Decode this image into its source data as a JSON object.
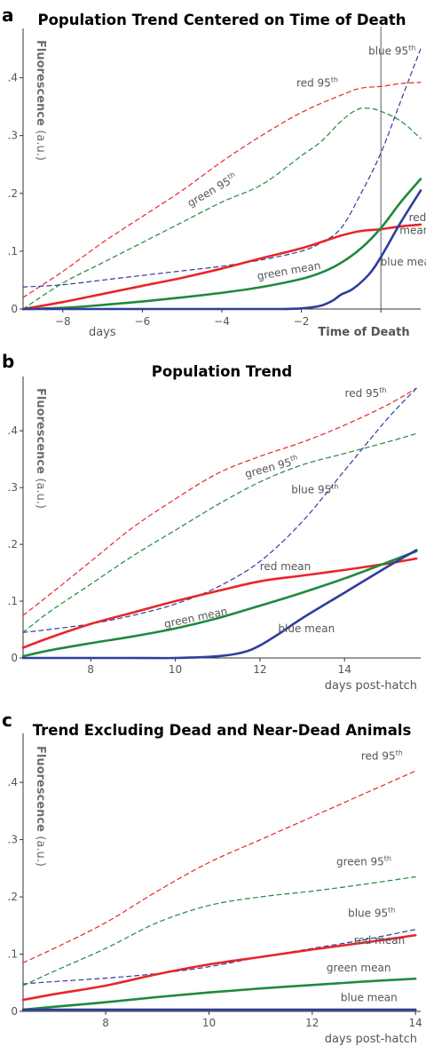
{
  "chart_data": [
    {
      "type": "line",
      "panel_letter": "a",
      "title": "Population Trend Centered on Time of Death",
      "ylabel": "Fluorescence",
      "ylabel_unit": "(a.u.)",
      "xlabel": "days",
      "xlabel_secondary": "Time of Death",
      "xlim": [
        -9,
        1
      ],
      "ylim": [
        0,
        0.47
      ],
      "xticks": [
        -8,
        -6,
        -4,
        -2,
        0
      ],
      "yticks": [
        0,
        0.1,
        0.2,
        0.3,
        0.4
      ],
      "vline_x": 0,
      "colors": {
        "red": "#e8262a",
        "green": "#1f8a3b",
        "blue": "#2e3e9c"
      },
      "series": [
        {
          "name": "red 95th",
          "color": "red",
          "style": "dashed",
          "x": [
            -9,
            -8,
            -7,
            -6,
            -5,
            -4,
            -3,
            -2,
            -1,
            -0.5,
            0,
            0.5,
            1
          ],
          "y": [
            0.02,
            0.065,
            0.115,
            0.16,
            0.205,
            0.255,
            0.3,
            0.34,
            0.37,
            0.382,
            0.385,
            0.39,
            0.392
          ]
        },
        {
          "name": "green 95th",
          "color": "green",
          "style": "dashed",
          "x": [
            -9,
            -8,
            -7,
            -6,
            -5,
            -4,
            -3,
            -2,
            -1.5,
            -1,
            -0.6,
            -0.3,
            0,
            0.5,
            1
          ],
          "y": [
            0.0,
            0.045,
            0.08,
            0.115,
            0.15,
            0.185,
            0.215,
            0.265,
            0.29,
            0.325,
            0.345,
            0.347,
            0.342,
            0.325,
            0.295
          ]
        },
        {
          "name": "blue 95th",
          "color": "blue",
          "style": "dashed",
          "x": [
            -9,
            -8,
            -7,
            -6,
            -5,
            -4,
            -3,
            -2,
            -1.5,
            -1,
            -0.5,
            0,
            0.5,
            1
          ],
          "y": [
            0.038,
            0.042,
            0.05,
            0.058,
            0.066,
            0.074,
            0.085,
            0.1,
            0.115,
            0.14,
            0.2,
            0.27,
            0.36,
            0.45
          ]
        },
        {
          "name": "red mean",
          "color": "red",
          "style": "solid",
          "x": [
            -9,
            -8,
            -7,
            -6,
            -5,
            -4,
            -3,
            -2,
            -1,
            -0.5,
            0,
            0.5,
            1
          ],
          "y": [
            0.0,
            0.012,
            0.026,
            0.04,
            0.054,
            0.07,
            0.088,
            0.105,
            0.127,
            0.135,
            0.138,
            0.143,
            0.146
          ]
        },
        {
          "name": "green mean",
          "color": "green",
          "style": "solid",
          "x": [
            -9,
            -8,
            -7,
            -6,
            -5,
            -4,
            -3,
            -2,
            -1.5,
            -1,
            -0.5,
            0,
            0.5,
            1
          ],
          "y": [
            0.0,
            0.002,
            0.007,
            0.013,
            0.02,
            0.028,
            0.038,
            0.052,
            0.063,
            0.08,
            0.105,
            0.14,
            0.185,
            0.225
          ]
        },
        {
          "name": "blue mean",
          "color": "blue",
          "style": "solid",
          "x": [
            -9,
            -8,
            -6,
            -4,
            -2.5,
            -2,
            -1.5,
            -1.2,
            -1,
            -0.7,
            -0.3,
            0,
            0.5,
            1
          ],
          "y": [
            0.0,
            0.0,
            0.0,
            0.0,
            0.0,
            0.001,
            0.006,
            0.015,
            0.025,
            0.035,
            0.06,
            0.09,
            0.15,
            0.205
          ]
        }
      ],
      "labels": [
        {
          "text": "blue 95",
          "sup": "th",
          "x": 0.28,
          "y": 0.44,
          "color": "#555"
        },
        {
          "text": "red 95",
          "sup": "th",
          "x": -1.6,
          "y": 0.385,
          "color": "#555"
        },
        {
          "text": "green 95",
          "sup": "th",
          "x": -4.2,
          "y": 0.2,
          "color": "#555",
          "rotate": -30
        },
        {
          "text": "red",
          "x": 0.92,
          "y": 0.152,
          "color": "#555"
        },
        {
          "text": "mean",
          "x": 0.85,
          "y": 0.13,
          "color": "#555"
        },
        {
          "text": "green mean",
          "x": -2.3,
          "y": 0.06,
          "color": "#555",
          "rotate": -10
        },
        {
          "text": "blue mean",
          "x": 0.7,
          "y": 0.075,
          "color": "#555"
        }
      ]
    },
    {
      "type": "line",
      "panel_letter": "b",
      "title": "Population Trend",
      "ylabel": "Fluorescence",
      "ylabel_unit": "(a.u.)",
      "xlabel": "days post-hatch",
      "xlim": [
        6.4,
        15.8
      ],
      "ylim": [
        0,
        0.48
      ],
      "xticks": [
        8,
        10,
        12,
        14
      ],
      "yticks": [
        0,
        0.1,
        0.2,
        0.3,
        0.4
      ],
      "colors": {
        "red": "#e8262a",
        "green": "#1f8a3b",
        "blue": "#2e3e9c"
      },
      "series": [
        {
          "name": "red 95th",
          "color": "red",
          "style": "dashed",
          "x": [
            6.4,
            7,
            8,
            9,
            10,
            11,
            12,
            13,
            14,
            15,
            15.7
          ],
          "y": [
            0.075,
            0.11,
            0.17,
            0.23,
            0.28,
            0.325,
            0.355,
            0.38,
            0.41,
            0.445,
            0.475
          ]
        },
        {
          "name": "green 95th",
          "color": "green",
          "style": "dashed",
          "x": [
            6.4,
            7,
            8,
            9,
            10,
            11,
            12,
            13,
            14,
            15,
            15.7
          ],
          "y": [
            0.045,
            0.08,
            0.13,
            0.18,
            0.225,
            0.27,
            0.31,
            0.34,
            0.36,
            0.38,
            0.395
          ]
        },
        {
          "name": "blue 95th",
          "color": "blue",
          "style": "dashed",
          "x": [
            6.4,
            7,
            8,
            9,
            10,
            11,
            12,
            13,
            14,
            15,
            15.7
          ],
          "y": [
            0.045,
            0.05,
            0.06,
            0.075,
            0.095,
            0.125,
            0.17,
            0.24,
            0.33,
            0.42,
            0.475
          ]
        },
        {
          "name": "red mean",
          "color": "red",
          "style": "solid",
          "x": [
            6.4,
            7,
            8,
            9,
            10,
            11,
            12,
            13,
            14,
            15,
            15.7
          ],
          "y": [
            0.018,
            0.035,
            0.06,
            0.08,
            0.1,
            0.118,
            0.135,
            0.145,
            0.155,
            0.166,
            0.175
          ]
        },
        {
          "name": "green mean",
          "color": "green",
          "style": "solid",
          "x": [
            6.4,
            7,
            8,
            9,
            10,
            11,
            12,
            13,
            14,
            15,
            15.7
          ],
          "y": [
            0.003,
            0.013,
            0.026,
            0.038,
            0.052,
            0.07,
            0.092,
            0.115,
            0.14,
            0.168,
            0.188
          ]
        },
        {
          "name": "blue mean",
          "color": "blue",
          "style": "solid",
          "x": [
            6.4,
            7,
            8,
            9,
            10,
            11,
            11.6,
            12,
            12.5,
            13,
            14,
            15,
            15.7
          ],
          "y": [
            0.0,
            0.0,
            0.0,
            0.0,
            0.0,
            0.003,
            0.01,
            0.022,
            0.045,
            0.07,
            0.115,
            0.16,
            0.19
          ]
        }
      ],
      "labels": [
        {
          "text": "red 95",
          "sup": "th",
          "x": 14.5,
          "y": 0.46,
          "color": "#555"
        },
        {
          "text": "green 95",
          "sup": "th",
          "x": 12.3,
          "y": 0.33,
          "color": "#555",
          "rotate": -15
        },
        {
          "text": "blue 95",
          "sup": "th",
          "x": 13.3,
          "y": 0.29,
          "color": "#555"
        },
        {
          "text": "red mean",
          "x": 12.6,
          "y": 0.155,
          "color": "#555"
        },
        {
          "text": "green mean",
          "x": 10.5,
          "y": 0.065,
          "color": "#555",
          "rotate": -12
        },
        {
          "text": "blue mean",
          "x": 13.1,
          "y": 0.045,
          "color": "#555"
        }
      ]
    },
    {
      "type": "line",
      "panel_letter": "c",
      "title": "Trend Excluding Dead and Near-Dead Animals",
      "ylabel": "Fluorescence",
      "ylabel_unit": "(a.u.)",
      "xlabel": "days post-hatch",
      "xlim": [
        6.4,
        14.1
      ],
      "ylim": [
        0,
        0.47
      ],
      "xticks": [
        8,
        10,
        12,
        14
      ],
      "yticks": [
        0,
        0.1,
        0.2,
        0.3,
        0.4
      ],
      "colors": {
        "red": "#e8262a",
        "green": "#1f8a3b",
        "blue": "#2e3e9c"
      },
      "series": [
        {
          "name": "red 95th",
          "color": "red",
          "style": "dashed",
          "x": [
            6.4,
            7,
            8,
            9,
            10,
            11,
            12,
            13,
            14
          ],
          "y": [
            0.085,
            0.11,
            0.155,
            0.21,
            0.26,
            0.3,
            0.34,
            0.38,
            0.42
          ]
        },
        {
          "name": "green 95th",
          "color": "green",
          "style": "dashed",
          "x": [
            6.4,
            7,
            8,
            9,
            10,
            11,
            12,
            13,
            14
          ],
          "y": [
            0.045,
            0.07,
            0.11,
            0.155,
            0.185,
            0.2,
            0.21,
            0.222,
            0.235
          ]
        },
        {
          "name": "blue 95th",
          "color": "blue",
          "style": "dashed",
          "x": [
            6.4,
            7,
            8,
            9,
            10,
            11,
            12,
            13,
            14
          ],
          "y": [
            0.048,
            0.052,
            0.058,
            0.066,
            0.078,
            0.095,
            0.11,
            0.125,
            0.143
          ]
        },
        {
          "name": "red mean",
          "color": "red",
          "style": "solid",
          "x": [
            6.4,
            7,
            8,
            9,
            10,
            11,
            12,
            13,
            14
          ],
          "y": [
            0.02,
            0.03,
            0.045,
            0.065,
            0.082,
            0.095,
            0.108,
            0.12,
            0.133
          ]
        },
        {
          "name": "green mean",
          "color": "green",
          "style": "solid",
          "x": [
            6.4,
            7,
            8,
            9,
            10,
            11,
            12,
            13,
            14
          ],
          "y": [
            0.003,
            0.008,
            0.016,
            0.025,
            0.033,
            0.04,
            0.046,
            0.052,
            0.057
          ]
        },
        {
          "name": "blue mean",
          "color": "blue",
          "style": "solid",
          "x": [
            6.4,
            8,
            10,
            12,
            14
          ],
          "y": [
            0.003,
            0.003,
            0.003,
            0.003,
            0.003
          ]
        }
      ],
      "labels": [
        {
          "text": "red 95",
          "sup": "th",
          "x": 13.35,
          "y": 0.44,
          "color": "#555"
        },
        {
          "text": "green 95",
          "sup": "th",
          "x": 13.0,
          "y": 0.255,
          "color": "#555"
        },
        {
          "text": "blue 95",
          "sup": "th",
          "x": 13.15,
          "y": 0.165,
          "color": "#555"
        },
        {
          "text": "red mean",
          "x": 13.3,
          "y": 0.118,
          "color": "#555"
        },
        {
          "text": "green mean",
          "x": 12.9,
          "y": 0.07,
          "color": "#555"
        },
        {
          "text": "blue mean",
          "x": 13.1,
          "y": 0.018,
          "color": "#555"
        }
      ]
    }
  ]
}
